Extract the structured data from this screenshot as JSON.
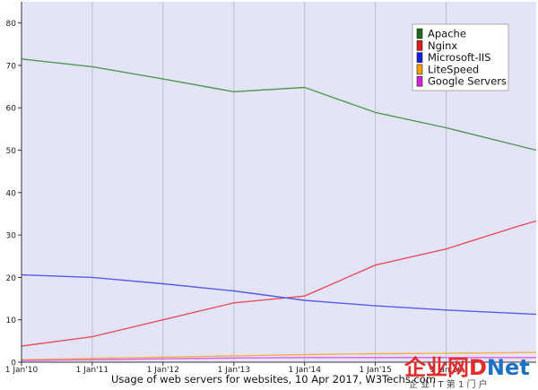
{
  "chart_data": {
    "type": "line",
    "title": "",
    "caption": "Usage of web servers for websites, 10 Apr 2017, W3Techs.com",
    "xlabel": "",
    "ylabel": "",
    "ylim": [
      0,
      85
    ],
    "y_ticks": [
      0,
      10,
      20,
      30,
      40,
      50,
      60,
      70,
      80
    ],
    "x_ticks": [
      "1 Jan'10",
      "1 Jan'11",
      "1 Jan'12",
      "1 Jan'13",
      "1 Jan'14",
      "1 Jan'15",
      "1 Jan'16"
    ],
    "xlim": [
      "2010-01-01",
      "2017-04-10"
    ],
    "grid": "vertical",
    "legend_position": "top-right",
    "series": [
      {
        "name": "Apache",
        "color": "#4e9a4e",
        "points": [
          [
            "2010-01-01",
            71.5
          ],
          [
            "2011-01-01",
            69.7
          ],
          [
            "2012-01-01",
            66.8
          ],
          [
            "2013-01-01",
            63.8
          ],
          [
            "2014-01-01",
            64.8
          ],
          [
            "2015-01-01",
            58.9
          ],
          [
            "2016-01-01",
            55.3
          ],
          [
            "2017-04-10",
            50.0
          ]
        ]
      },
      {
        "name": "Nginx",
        "color": "#e8505a",
        "points": [
          [
            "2010-01-01",
            3.8
          ],
          [
            "2011-01-01",
            6.0
          ],
          [
            "2012-01-01",
            10.0
          ],
          [
            "2013-01-01",
            14.0
          ],
          [
            "2014-01-01",
            15.6
          ],
          [
            "2015-01-01",
            22.9
          ],
          [
            "2016-01-01",
            26.7
          ],
          [
            "2017-01-01",
            32.0
          ],
          [
            "2017-04-10",
            33.3
          ]
        ]
      },
      {
        "name": "Microsoft-IIS",
        "color": "#5a5ae6",
        "points": [
          [
            "2010-01-01",
            20.6
          ],
          [
            "2011-01-01",
            20.0
          ],
          [
            "2012-01-01",
            18.5
          ],
          [
            "2013-01-01",
            16.8
          ],
          [
            "2014-01-01",
            14.6
          ],
          [
            "2015-01-01",
            13.3
          ],
          [
            "2016-01-01",
            12.3
          ],
          [
            "2017-04-10",
            11.3
          ]
        ]
      },
      {
        "name": "LiteSpeed",
        "color": "#f2b24a",
        "points": [
          [
            "2010-01-01",
            0.6
          ],
          [
            "2011-01-01",
            0.9
          ],
          [
            "2012-01-01",
            1.2
          ],
          [
            "2013-01-01",
            1.5
          ],
          [
            "2014-01-01",
            1.8
          ],
          [
            "2015-01-01",
            2.0
          ],
          [
            "2016-01-01",
            2.1
          ],
          [
            "2017-04-10",
            2.3
          ]
        ]
      },
      {
        "name": "Google Servers",
        "color": "#e05ee0",
        "points": [
          [
            "2010-01-01",
            0.4
          ],
          [
            "2011-01-01",
            0.6
          ],
          [
            "2012-01-01",
            0.8
          ],
          [
            "2013-01-01",
            1.0
          ],
          [
            "2014-01-01",
            1.1
          ],
          [
            "2015-01-01",
            1.1
          ],
          [
            "2016-01-01",
            1.1
          ],
          [
            "2017-04-10",
            1.1
          ]
        ]
      }
    ],
    "legend_swatch_colors": [
      "#1d6a1d",
      "#d81e1e",
      "#1e1ed8",
      "#f0a000",
      "#d81ed8"
    ],
    "plot_background": "#e4e4f8"
  },
  "watermark": {
    "main_left": "企业网",
    "main_right": "D",
    "main_tail": "Net",
    "sub": "企 业 I T 第 1 门 户",
    "color_red": "#e32b2b",
    "color_blue": "#1f6fc5"
  }
}
